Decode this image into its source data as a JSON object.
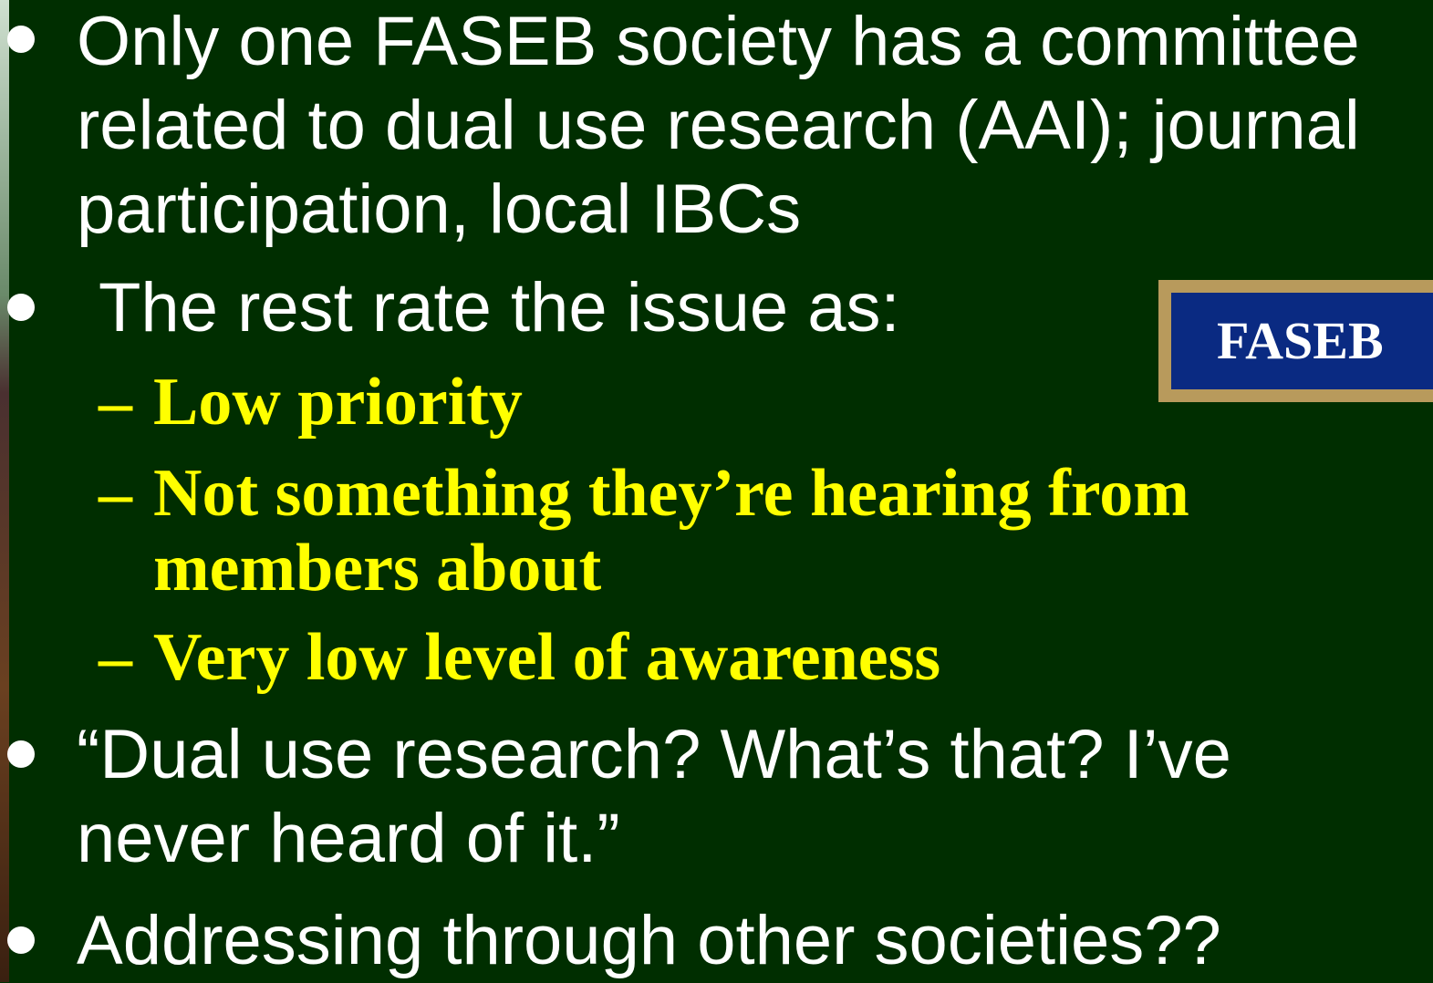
{
  "bullets": [
    {
      "text": "Only one FASEB society has a committee related to dual use research (AAI); journal participation, local IBCs"
    },
    {
      "text": "The rest rate the issue as:",
      "sub": [
        "Low priority",
        "Not something they’re hearing from members about",
        "Very low level of awareness"
      ]
    },
    {
      "text": "“Dual use research? What’s that? I’ve never heard of it.”"
    },
    {
      "text": "Addressing through other societies??"
    }
  ],
  "logo": {
    "text": "FASEB"
  }
}
